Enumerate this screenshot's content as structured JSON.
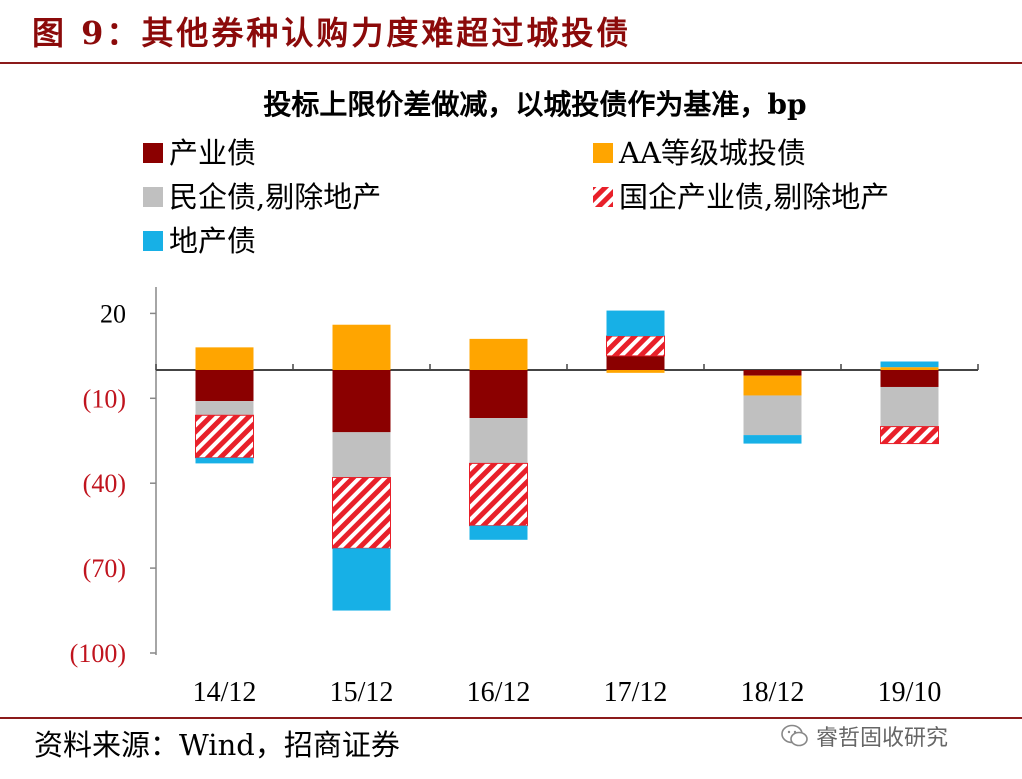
{
  "header": {
    "figure_title": "图 9：其他券种认购力度难超过城投债"
  },
  "footer": {
    "source": "资料来源：Wind，招商证券",
    "watermark": "睿哲固收研究"
  },
  "colors": {
    "产业债": "#8b0000",
    "AA等级城投债": "#ffa500",
    "民企债,剔除地产": "#c0c0c0",
    "国企产业债,剔除地产": "#e8202a",
    "地产债": "#17b0e6",
    "title_red": "#8b0a0a",
    "negative_tick": "#c0141e"
  },
  "chart_data": {
    "type": "bar",
    "stacked": true,
    "title": "投标上限价差做减，以城投债作为基准，bp",
    "categories": [
      "14/12",
      "15/12",
      "16/12",
      "17/12",
      "18/12",
      "19/10"
    ],
    "yticks": [
      20,
      -10,
      -40,
      -70,
      -100
    ],
    "ytick_labels": [
      "20",
      "(10)",
      "(40)",
      "(70)",
      "(100)"
    ],
    "ylim": [
      -100,
      28
    ],
    "legend_position": "top",
    "series": [
      {
        "name": "产业债",
        "values": [
          -11,
          -22,
          -17,
          5,
          -2,
          -6
        ],
        "pattern": "solid"
      },
      {
        "name": "AA等级城投债",
        "values": [
          8,
          16,
          11,
          -1,
          -7,
          1
        ],
        "pattern": "solid"
      },
      {
        "name": "民企债,剔除地产",
        "values": [
          -5,
          -16,
          -16,
          0,
          -14,
          -14
        ],
        "pattern": "solid"
      },
      {
        "name": "国企产业债,剔除地产",
        "values": [
          -15,
          -25,
          -22,
          7,
          0,
          -6
        ],
        "pattern": "hatch"
      },
      {
        "name": "地产债",
        "values": [
          -2,
          -22,
          -5,
          9,
          -3,
          2
        ],
        "pattern": "solid"
      }
    ]
  }
}
